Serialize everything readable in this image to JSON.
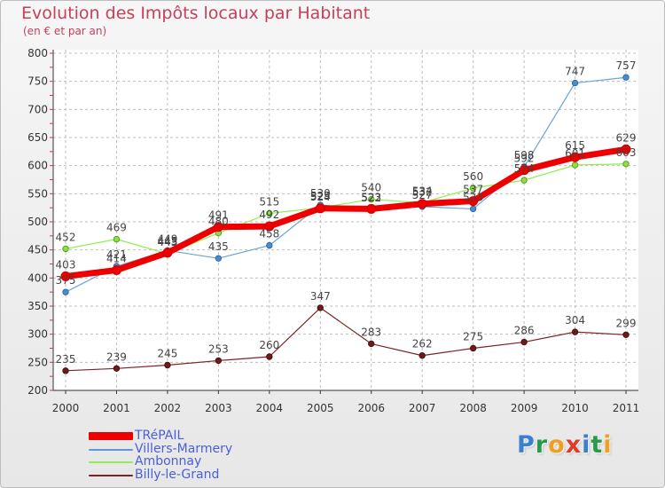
{
  "chart_data": {
    "type": "line",
    "title": "Evolution des Impôts locaux par Habitant",
    "subtitle": "(en € et par an)",
    "xlabel": "",
    "ylabel": "",
    "ylim": [
      200,
      800
    ],
    "yticks": [
      200,
      250,
      300,
      350,
      400,
      450,
      500,
      550,
      600,
      650,
      700,
      750,
      800
    ],
    "categories": [
      "2000",
      "2001",
      "2002",
      "2003",
      "2004",
      "2005",
      "2006",
      "2007",
      "2008",
      "2009",
      "2010",
      "2011"
    ],
    "grid": true,
    "legend_position": "bottom-left",
    "series": [
      {
        "name": "TRéPAIL",
        "color": "#ee0000",
        "values": [
          403,
          414,
          445,
          491,
          492,
          524,
          523,
          532,
          537,
          592,
          615,
          629
        ]
      },
      {
        "name": "Villers-Marmery",
        "color": "#5b9bd5",
        "values": [
          375,
          421,
          449,
          435,
          458,
          530,
          522,
          527,
          523,
          598,
          747,
          757
        ]
      },
      {
        "name": "Ambonnay",
        "color": "#90ee50",
        "values": [
          452,
          469,
          443,
          480,
          515,
          525,
          540,
          534,
          560,
          574,
          601,
          603
        ]
      },
      {
        "name": "Billy-le-Grand",
        "color": "#7a2424",
        "values": [
          235,
          239,
          245,
          253,
          260,
          347,
          283,
          262,
          275,
          286,
          304,
          299
        ]
      }
    ]
  },
  "brand": {
    "letters": [
      "P",
      "r",
      "o",
      "x",
      "i",
      "t",
      "i"
    ],
    "colors": [
      "#3b7fd0",
      "#2a9a4a",
      "#f0a020",
      "#e03a2a",
      "#3b7fd0",
      "#2a9a4a",
      "#f0a020"
    ]
  }
}
